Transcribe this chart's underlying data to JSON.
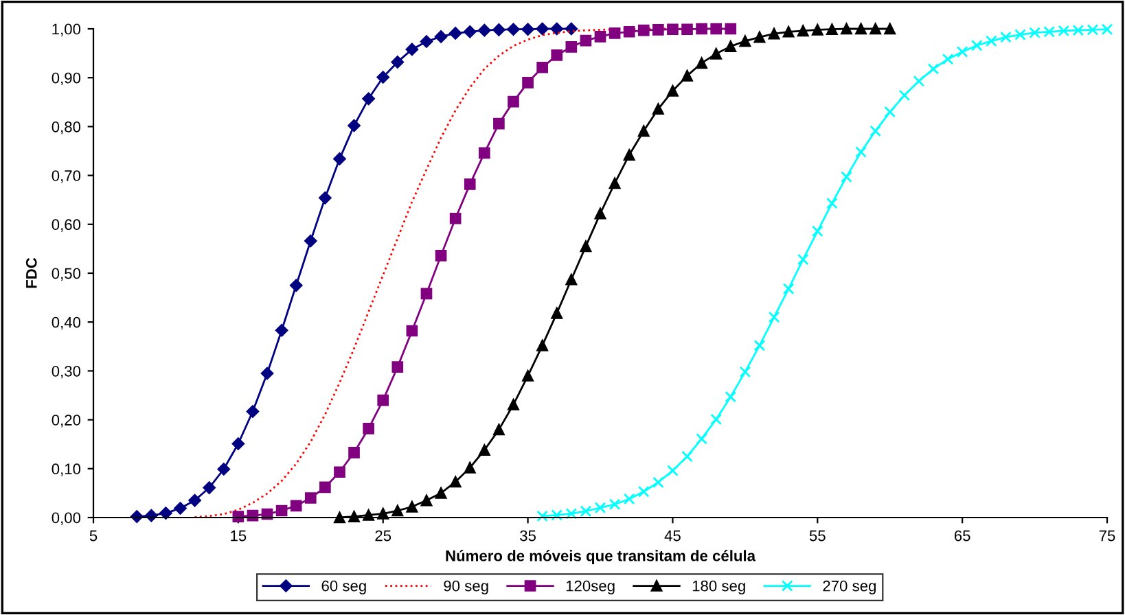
{
  "chart_data": {
    "type": "line",
    "xlabel": "Número de móveis que transitam de célula",
    "ylabel": "FDC",
    "xlim": [
      5,
      75
    ],
    "xticks": [
      5,
      15,
      25,
      35,
      45,
      55,
      65,
      75
    ],
    "ylim": [
      0,
      1
    ],
    "yticks": [
      {
        "value": 0,
        "label": "0,00"
      },
      {
        "value": 0.1,
        "label": "0,10"
      },
      {
        "value": 0.2,
        "label": "0,20"
      },
      {
        "value": 0.3,
        "label": "0,30"
      },
      {
        "value": 0.4,
        "label": "0,40"
      },
      {
        "value": 0.5,
        "label": "0,50"
      },
      {
        "value": 0.6,
        "label": "0,60"
      },
      {
        "value": 0.7,
        "label": "0,70"
      },
      {
        "value": 0.8,
        "label": "0,80"
      },
      {
        "value": 0.9,
        "label": "0,90"
      },
      {
        "value": 1.0,
        "label": "1,00"
      }
    ],
    "grid": false,
    "legend": "bottom",
    "series": [
      {
        "name": "60 seg",
        "color": "#000080",
        "marker": "diamond",
        "line_style": "solid",
        "x": [
          8,
          9,
          10,
          11,
          12,
          13,
          14,
          15,
          16,
          17,
          18,
          19,
          20,
          21,
          22,
          23,
          24,
          25,
          26,
          27,
          28,
          29,
          30,
          31,
          32,
          33,
          34,
          35,
          36,
          37,
          38
        ],
        "values": [
          0.002,
          0.004,
          0.009,
          0.019,
          0.035,
          0.061,
          0.099,
          0.151,
          0.217,
          0.295,
          0.383,
          0.475,
          0.566,
          0.654,
          0.734,
          0.802,
          0.857,
          0.901,
          0.932,
          0.958,
          0.974,
          0.984,
          0.991,
          0.994,
          0.997,
          0.998,
          0.999,
          0.999,
          1.0,
          1.0,
          1.0
        ]
      },
      {
        "name": "90 seg",
        "color": "#ff0000",
        "marker": "none",
        "line_style": "dotted",
        "x": [
          12,
          13,
          14,
          15,
          16,
          17,
          18,
          19,
          20,
          21,
          22,
          23,
          24,
          25,
          26,
          27,
          28,
          29,
          30,
          31,
          32,
          33,
          34,
          35,
          36,
          37,
          38,
          39,
          40,
          41,
          42,
          43,
          44,
          45,
          46
        ],
        "values": [
          0.001,
          0.003,
          0.007,
          0.016,
          0.03,
          0.049,
          0.075,
          0.11,
          0.155,
          0.211,
          0.276,
          0.346,
          0.421,
          0.496,
          0.571,
          0.646,
          0.712,
          0.777,
          0.833,
          0.88,
          0.918,
          0.945,
          0.965,
          0.978,
          0.987,
          0.992,
          0.995,
          0.997,
          0.998,
          0.999,
          0.999,
          1.0,
          1.0,
          1.0,
          1.0
        ]
      },
      {
        "name": "120seg",
        "color": "#800080",
        "marker": "square",
        "line_style": "solid",
        "x": [
          15,
          16,
          17,
          18,
          19,
          20,
          21,
          22,
          23,
          24,
          25,
          26,
          27,
          28,
          29,
          30,
          31,
          32,
          33,
          34,
          35,
          36,
          37,
          38,
          39,
          40,
          41,
          42,
          43,
          44,
          45,
          46,
          47,
          48,
          49
        ],
        "values": [
          0.002,
          0.004,
          0.007,
          0.014,
          0.024,
          0.04,
          0.062,
          0.093,
          0.133,
          0.182,
          0.24,
          0.308,
          0.382,
          0.458,
          0.536,
          0.612,
          0.682,
          0.746,
          0.806,
          0.851,
          0.89,
          0.921,
          0.946,
          0.963,
          0.976,
          0.984,
          0.991,
          0.994,
          0.997,
          0.998,
          0.999,
          0.999,
          1.0,
          1.0,
          1.0
        ]
      },
      {
        "name": "180 seg",
        "color": "#000000",
        "marker": "triangle",
        "line_style": "solid",
        "x": [
          22,
          23,
          24,
          25,
          26,
          27,
          28,
          29,
          30,
          31,
          32,
          33,
          34,
          35,
          36,
          37,
          38,
          39,
          40,
          41,
          42,
          43,
          44,
          45,
          46,
          47,
          48,
          49,
          50,
          51,
          52,
          53,
          54,
          55,
          56,
          57,
          58,
          59,
          60
        ],
        "values": [
          0.0,
          0.002,
          0.005,
          0.008,
          0.014,
          0.022,
          0.035,
          0.05,
          0.073,
          0.102,
          0.138,
          0.18,
          0.231,
          0.29,
          0.352,
          0.418,
          0.487,
          0.555,
          0.622,
          0.684,
          0.742,
          0.791,
          0.836,
          0.873,
          0.904,
          0.93,
          0.949,
          0.964,
          0.975,
          0.983,
          0.99,
          0.994,
          0.996,
          0.998,
          0.999,
          1.0,
          1.0,
          1.0,
          1.0
        ]
      },
      {
        "name": "270 seg",
        "color": "#00ffff",
        "marker": "cross",
        "line_style": "solid",
        "x": [
          36,
          37,
          38,
          39,
          40,
          41,
          42,
          43,
          44,
          45,
          46,
          47,
          48,
          49,
          50,
          51,
          52,
          53,
          54,
          55,
          56,
          57,
          58,
          59,
          60,
          61,
          62,
          63,
          64,
          65,
          66,
          67,
          68,
          69,
          70,
          71,
          72,
          73,
          74,
          75
        ],
        "values": [
          0.003,
          0.005,
          0.008,
          0.013,
          0.02,
          0.027,
          0.038,
          0.053,
          0.072,
          0.096,
          0.125,
          0.161,
          0.201,
          0.247,
          0.298,
          0.352,
          0.41,
          0.468,
          0.528,
          0.586,
          0.643,
          0.697,
          0.748,
          0.791,
          0.83,
          0.864,
          0.893,
          0.918,
          0.938,
          0.953,
          0.966,
          0.975,
          0.983,
          0.988,
          0.992,
          0.994,
          0.996,
          0.997,
          0.998,
          0.999
        ]
      }
    ]
  }
}
